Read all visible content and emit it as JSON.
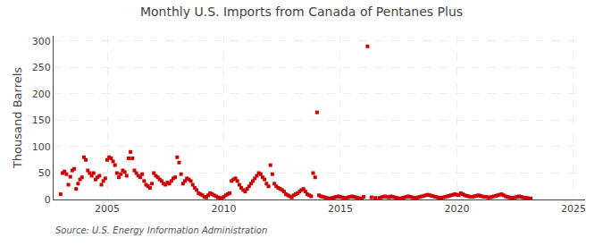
{
  "chart_data": {
    "type": "scatter",
    "title": "Monthly U.S. Imports from Canada of Pentanes Plus",
    "y_label": "Thousand Barrels",
    "annotations": [
      "Source: U.S. Energy Information Administration"
    ],
    "color": "#cc0000",
    "marker": "square",
    "grid": true,
    "xlim": [
      2002.7,
      2025.5
    ],
    "ylim": [
      0,
      310
    ],
    "xticks": [
      2005,
      2010,
      2015,
      2020,
      2025
    ],
    "yticks": [
      0,
      50,
      100,
      150,
      200,
      250,
      300
    ],
    "x": [
      2003.0,
      2003.083,
      2003.167,
      2003.25,
      2003.333,
      2003.417,
      2003.5,
      2003.583,
      2003.667,
      2003.75,
      2003.833,
      2003.917,
      2004.0,
      2004.083,
      2004.167,
      2004.25,
      2004.333,
      2004.417,
      2004.5,
      2004.583,
      2004.667,
      2004.75,
      2004.833,
      2004.917,
      2005.0,
      2005.083,
      2005.167,
      2005.25,
      2005.333,
      2005.417,
      2005.5,
      2005.583,
      2005.667,
      2005.75,
      2005.833,
      2005.917,
      2006.0,
      2006.083,
      2006.167,
      2006.25,
      2006.333,
      2006.417,
      2006.5,
      2006.583,
      2006.667,
      2006.75,
      2006.833,
      2006.917,
      2007.0,
      2007.083,
      2007.167,
      2007.25,
      2007.333,
      2007.417,
      2007.5,
      2007.583,
      2007.667,
      2007.75,
      2007.833,
      2007.917,
      2008.0,
      2008.083,
      2008.167,
      2008.25,
      2008.333,
      2008.417,
      2008.5,
      2008.583,
      2008.667,
      2008.75,
      2008.833,
      2008.917,
      2009.0,
      2009.083,
      2009.167,
      2009.25,
      2009.333,
      2009.417,
      2009.5,
      2009.583,
      2009.667,
      2009.75,
      2009.833,
      2009.917,
      2010.0,
      2010.083,
      2010.167,
      2010.25,
      2010.333,
      2010.417,
      2010.5,
      2010.583,
      2010.667,
      2010.75,
      2010.833,
      2010.917,
      2011.0,
      2011.083,
      2011.167,
      2011.25,
      2011.333,
      2011.417,
      2011.5,
      2011.583,
      2011.667,
      2011.75,
      2011.833,
      2011.917,
      2012.0,
      2012.083,
      2012.167,
      2012.25,
      2012.333,
      2012.417,
      2012.5,
      2012.583,
      2012.667,
      2012.75,
      2012.833,
      2012.917,
      2013.0,
      2013.083,
      2013.167,
      2013.25,
      2013.333,
      2013.417,
      2013.5,
      2013.583,
      2013.667,
      2013.75,
      2013.833,
      2013.917,
      2014.0,
      2014.083,
      2014.167,
      2014.25,
      2014.333,
      2014.417,
      2014.5,
      2014.583,
      2014.667,
      2014.75,
      2014.833,
      2014.917,
      2015.0,
      2015.083,
      2015.167,
      2015.25,
      2015.333,
      2015.417,
      2015.5,
      2015.583,
      2015.667,
      2015.75,
      2015.833,
      2015.917,
      2016.0,
      2016.167,
      2016.333,
      2016.5,
      2016.667,
      2016.75,
      2016.833,
      2016.917,
      2017.0,
      2017.083,
      2017.167,
      2017.25,
      2017.333,
      2017.417,
      2017.5,
      2017.583,
      2017.667,
      2017.75,
      2017.833,
      2017.917,
      2018.0,
      2018.083,
      2018.167,
      2018.25,
      2018.333,
      2018.417,
      2018.5,
      2018.583,
      2018.667,
      2018.75,
      2018.833,
      2018.917,
      2019.0,
      2019.083,
      2019.167,
      2019.25,
      2019.333,
      2019.417,
      2019.5,
      2019.583,
      2019.667,
      2019.75,
      2019.833,
      2019.917,
      2020.0,
      2020.083,
      2020.167,
      2020.25,
      2020.333,
      2020.417,
      2020.5,
      2020.583,
      2020.667,
      2020.75,
      2020.833,
      2020.917,
      2021.0,
      2021.083,
      2021.167,
      2021.25,
      2021.333,
      2021.417,
      2021.5,
      2021.583,
      2021.667,
      2021.75,
      2021.833,
      2021.917,
      2022.0,
      2022.083,
      2022.167,
      2022.25,
      2022.333,
      2022.417,
      2022.5,
      2022.583,
      2022.667,
      2022.75,
      2022.833,
      2022.917,
      2023.0,
      2023.083,
      2023.167
    ],
    "values": [
      10,
      50,
      53,
      48,
      28,
      43,
      55,
      58,
      20,
      30,
      38,
      42,
      80,
      75,
      55,
      50,
      45,
      50,
      38,
      42,
      45,
      28,
      35,
      40,
      75,
      80,
      78,
      72,
      65,
      50,
      42,
      48,
      55,
      52,
      45,
      78,
      90,
      78,
      55,
      50,
      45,
      42,
      48,
      35,
      28,
      25,
      22,
      30,
      50,
      45,
      42,
      38,
      35,
      30,
      28,
      32,
      30,
      35,
      40,
      42,
      80,
      70,
      48,
      30,
      35,
      40,
      38,
      35,
      28,
      22,
      18,
      12,
      10,
      8,
      5,
      4,
      8,
      12,
      10,
      8,
      6,
      4,
      3,
      2,
      5,
      8,
      10,
      12,
      35,
      38,
      40,
      35,
      28,
      22,
      18,
      15,
      20,
      25,
      30,
      35,
      40,
      45,
      50,
      48,
      42,
      38,
      30,
      25,
      65,
      48,
      30,
      25,
      22,
      20,
      18,
      15,
      10,
      8,
      6,
      4,
      8,
      10,
      12,
      15,
      18,
      20,
      15,
      10,
      8,
      6,
      50,
      42,
      165,
      8,
      6,
      5,
      4,
      3,
      2,
      2,
      3,
      4,
      5,
      6,
      5,
      4,
      3,
      3,
      4,
      5,
      6,
      5,
      4,
      3,
      2,
      2,
      5,
      290,
      4,
      3,
      3,
      4,
      5,
      6,
      5,
      4,
      6,
      5,
      4,
      3,
      2,
      2,
      3,
      4,
      5,
      6,
      5,
      4,
      3,
      3,
      4,
      5,
      6,
      7,
      8,
      9,
      8,
      7,
      6,
      5,
      4,
      3,
      3,
      4,
      5,
      6,
      7,
      8,
      9,
      10,
      9,
      8,
      12,
      10,
      8,
      7,
      6,
      5,
      5,
      6,
      7,
      8,
      7,
      6,
      5,
      5,
      4,
      4,
      5,
      6,
      7,
      8,
      9,
      10,
      8,
      6,
      5,
      4,
      3,
      3,
      4,
      5,
      6,
      5,
      4,
      3,
      3,
      2,
      2
    ]
  }
}
